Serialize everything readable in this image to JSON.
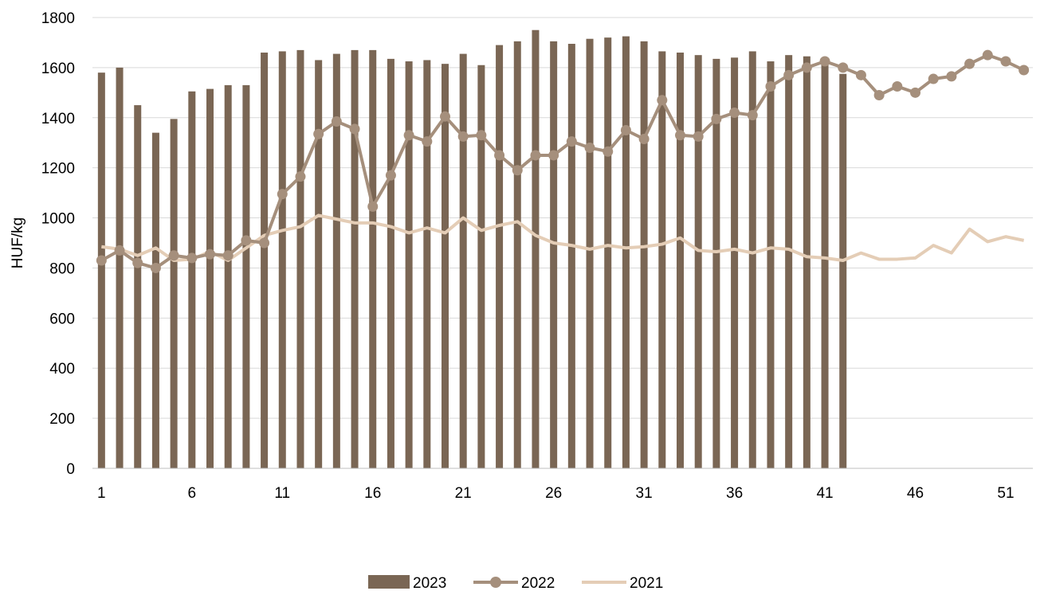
{
  "chart_data": {
    "type": "bar",
    "title": "",
    "xlabel": "",
    "ylabel": "HUF/kg",
    "ylim": [
      0,
      1800
    ],
    "yticks": [
      0,
      200,
      400,
      600,
      800,
      1000,
      1200,
      1400,
      1600,
      1800
    ],
    "xticks": [
      1,
      6,
      11,
      16,
      21,
      26,
      31,
      36,
      41,
      46,
      51
    ],
    "xlim": [
      1,
      52
    ],
    "grid": "horizontal",
    "legend_position": "bottom",
    "colors": {
      "2023": "#7a6654",
      "2022": "#a58f7c",
      "2021": "#e4cdb6",
      "grid": "#d9d9d9",
      "axis": "#bfbfbf"
    },
    "series": [
      {
        "name": "2023",
        "type": "bar",
        "x": [
          1,
          2,
          3,
          4,
          5,
          6,
          7,
          8,
          9,
          10,
          11,
          12,
          13,
          14,
          15,
          16,
          17,
          18,
          19,
          20,
          21,
          22,
          23,
          24,
          25,
          26,
          27,
          28,
          29,
          30,
          31,
          32,
          33,
          34,
          35,
          36,
          37,
          38,
          39,
          40,
          41,
          42
        ],
        "values": [
          1580,
          1600,
          1450,
          1340,
          1395,
          1505,
          1515,
          1530,
          1530,
          1660,
          1665,
          1670,
          1630,
          1655,
          1670,
          1670,
          1635,
          1625,
          1630,
          1615,
          1655,
          1610,
          1690,
          1705,
          1750,
          1705,
          1695,
          1715,
          1720,
          1725,
          1705,
          1665,
          1660,
          1650,
          1635,
          1640,
          1665,
          1625,
          1650,
          1645,
          1635,
          1575
        ]
      },
      {
        "name": "2022",
        "type": "line-marker",
        "x": [
          1,
          2,
          3,
          4,
          5,
          6,
          7,
          8,
          9,
          10,
          11,
          12,
          13,
          14,
          15,
          16,
          17,
          18,
          19,
          20,
          21,
          22,
          23,
          24,
          25,
          26,
          27,
          28,
          29,
          30,
          31,
          32,
          33,
          34,
          35,
          36,
          37,
          38,
          39,
          40,
          41,
          42,
          43,
          44,
          45,
          46,
          47,
          48,
          49,
          50,
          51,
          52
        ],
        "values": [
          830,
          870,
          820,
          800,
          850,
          840,
          855,
          850,
          910,
          900,
          1095,
          1165,
          1335,
          1385,
          1355,
          1045,
          1170,
          1330,
          1305,
          1405,
          1325,
          1330,
          1250,
          1190,
          1250,
          1250,
          1305,
          1280,
          1265,
          1350,
          1315,
          1470,
          1330,
          1325,
          1395,
          1420,
          1410,
          1525,
          1570,
          1600,
          1625,
          1600,
          1570,
          1490,
          1525,
          1500,
          1555,
          1565,
          1615,
          1650,
          1625,
          1590
        ]
      },
      {
        "name": "2021",
        "type": "line",
        "x": [
          1,
          2,
          3,
          4,
          5,
          6,
          7,
          8,
          9,
          10,
          11,
          12,
          13,
          14,
          15,
          16,
          17,
          18,
          19,
          20,
          21,
          22,
          23,
          24,
          25,
          26,
          27,
          28,
          29,
          30,
          31,
          32,
          33,
          34,
          35,
          36,
          37,
          38,
          39,
          40,
          41,
          42,
          43,
          44,
          45,
          46,
          47,
          48,
          49,
          50,
          51,
          52
        ],
        "values": [
          885,
          875,
          850,
          880,
          830,
          835,
          865,
          830,
          880,
          930,
          950,
          965,
          1010,
          995,
          980,
          980,
          965,
          940,
          960,
          940,
          1000,
          950,
          970,
          985,
          930,
          900,
          890,
          875,
          890,
          880,
          885,
          895,
          920,
          870,
          865,
          875,
          860,
          880,
          875,
          845,
          840,
          830,
          860,
          835,
          835,
          840,
          890,
          860,
          955,
          905,
          925,
          910
        ]
      }
    ]
  }
}
